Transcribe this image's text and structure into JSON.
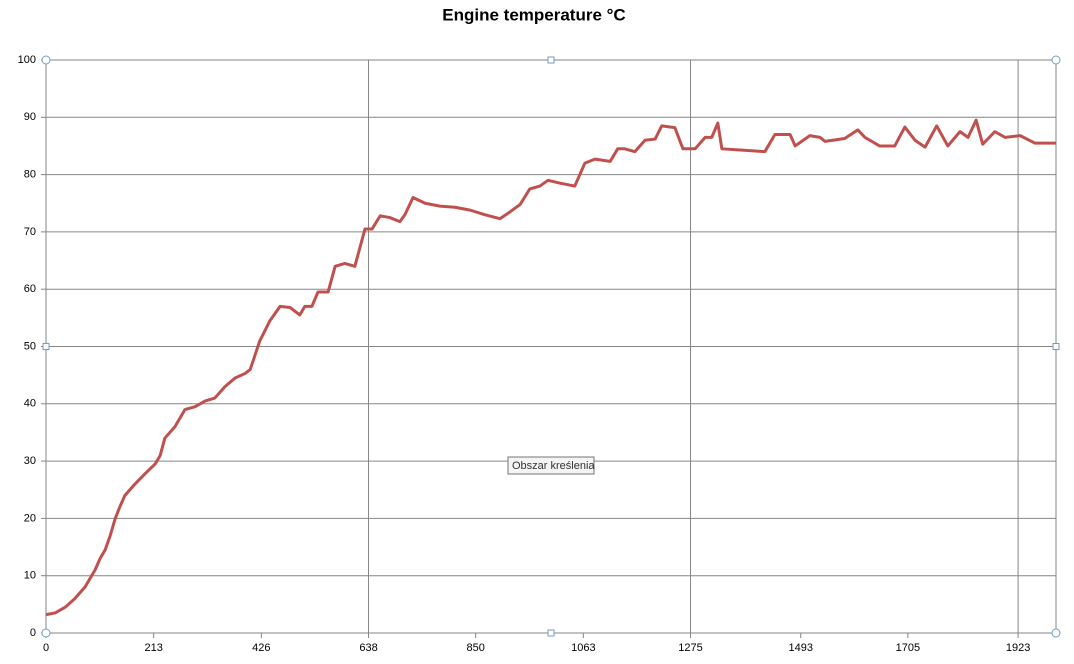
{
  "chart_data": {
    "type": "line",
    "title": "Engine temperature °C",
    "tooltip": "Obszar kreślenia",
    "x": [
      0,
      18,
      38,
      57,
      77,
      97,
      107,
      117,
      127,
      137,
      146,
      156,
      176,
      196,
      216,
      226,
      235,
      255,
      275,
      295,
      315,
      334,
      354,
      374,
      394,
      404,
      423,
      443,
      463,
      483,
      502,
      512,
      526,
      538,
      558,
      572,
      591,
      611,
      631,
      645,
      661,
      680,
      700,
      710,
      726,
      750,
      779,
      809,
      839,
      868,
      898,
      918,
      938,
      957,
      977,
      993,
      1017,
      1046,
      1066,
      1086,
      1116,
      1131,
      1145,
      1165,
      1185,
      1205,
      1218,
      1244,
      1260,
      1284,
      1304,
      1317,
      1329,
      1337,
      1373,
      1422,
      1442,
      1472,
      1482,
      1511,
      1531,
      1541,
      1580,
      1606,
      1620,
      1649,
      1679,
      1699,
      1719,
      1739,
      1762,
      1784,
      1808,
      1824,
      1840,
      1853,
      1877,
      1897,
      1927,
      1956,
      1998
    ],
    "series": [
      {
        "name": "Engine temperature",
        "color": "#c0504d",
        "values": [
          3.2,
          3.5,
          4.5,
          6,
          8,
          11,
          13,
          14.5,
          17,
          20,
          22,
          24,
          26,
          27.8,
          29.5,
          31,
          34,
          36,
          39,
          39.5,
          40.5,
          41,
          43,
          44.5,
          45.3,
          46,
          51,
          54.5,
          57,
          56.8,
          55.5,
          57,
          57,
          59.5,
          59.5,
          64,
          64.5,
          64,
          70.5,
          70.5,
          72.8,
          72.5,
          71.8,
          73,
          76,
          75,
          74.5,
          74.3,
          73.8,
          73,
          72.3,
          73.5,
          74.8,
          77.5,
          78,
          79,
          78.5,
          78,
          82,
          82.7,
          82.3,
          84.5,
          84.5,
          84,
          86,
          86.2,
          88.5,
          88.2,
          84.5,
          84.5,
          86.5,
          86.5,
          89,
          84.5,
          84.3,
          84,
          87,
          87,
          85,
          86.8,
          86.5,
          85.8,
          86.3,
          87.8,
          86.5,
          85,
          85,
          88.3,
          86,
          84.8,
          88.5,
          85,
          87.5,
          86.5,
          89.5,
          85.3,
          87.5,
          86.5,
          86.8,
          85.5,
          85.5
        ]
      }
    ],
    "xlim": [
      0,
      1998
    ],
    "ylim": [
      0,
      100
    ],
    "xticks": [
      0,
      213,
      426,
      638,
      850,
      1063,
      1275,
      1493,
      1705,
      1923
    ],
    "yticks": [
      0,
      10,
      20,
      30,
      40,
      50,
      60,
      70,
      80,
      90,
      100
    ],
    "grid": true,
    "xgrid_every": 3
  }
}
